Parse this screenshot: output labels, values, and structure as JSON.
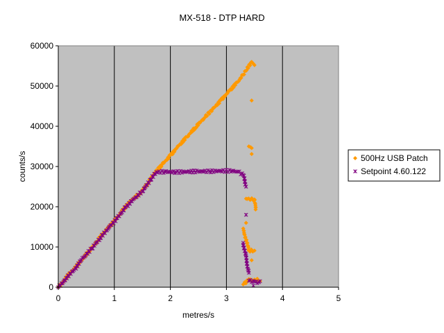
{
  "chart_data": {
    "type": "scatter",
    "title": "MX-518 - DTP HARD",
    "xlabel": "metres/s",
    "ylabel": "counts/s",
    "xlim": [
      0,
      5
    ],
    "ylim": [
      0,
      60000
    ],
    "xticks": [
      "0",
      "1",
      "2",
      "3",
      "4",
      "5"
    ],
    "yticks": [
      "0",
      "10000",
      "20000",
      "30000",
      "40000",
      "50000",
      "60000"
    ],
    "vertical_gridlines": true,
    "horizontal_gridlines": false,
    "plot_background": "#C0C0C0",
    "legend_position": "right",
    "series": [
      {
        "name": "500Hz USB Patch",
        "color": "#FF9900",
        "marker": "diamond",
        "points": [
          [
            0.0,
            0
          ],
          [
            0.28,
            4600
          ],
          [
            0.4,
            6500
          ],
          [
            0.55,
            8900
          ],
          [
            0.7,
            11500
          ],
          [
            0.85,
            14200
          ],
          [
            1.0,
            16500
          ],
          [
            1.15,
            19200
          ],
          [
            1.3,
            21600
          ],
          [
            1.45,
            23200
          ],
          [
            1.6,
            25800
          ],
          [
            1.72,
            28400
          ],
          [
            1.85,
            30500
          ],
          [
            2.0,
            32800
          ],
          [
            2.15,
            35200
          ],
          [
            2.3,
            37400
          ],
          [
            2.45,
            39700
          ],
          [
            2.6,
            42000
          ],
          [
            2.75,
            44200
          ],
          [
            2.9,
            46500
          ],
          [
            3.05,
            48800
          ],
          [
            3.2,
            51000
          ],
          [
            3.3,
            52800
          ],
          [
            3.35,
            53800
          ],
          [
            3.45,
            56000
          ],
          [
            3.5,
            55200
          ],
          [
            3.45,
            46400
          ],
          [
            3.4,
            35000
          ],
          [
            3.45,
            34600
          ],
          [
            3.45,
            33100
          ],
          [
            3.35,
            22000
          ],
          [
            3.5,
            21800
          ],
          [
            3.52,
            19300
          ],
          [
            3.35,
            16000
          ],
          [
            3.3,
            14600
          ],
          [
            3.4,
            9100
          ],
          [
            3.5,
            9100
          ],
          [
            3.45,
            6700
          ],
          [
            3.3,
            700
          ],
          [
            3.4,
            2000
          ],
          [
            3.45,
            1600
          ],
          [
            3.5,
            1900
          ],
          [
            3.55,
            2100
          ],
          [
            3.6,
            1500
          ]
        ]
      },
      {
        "name": "Setpoint 4.60.122",
        "color": "#800080",
        "marker": "asterisk",
        "points": [
          [
            0.0,
            0
          ],
          [
            0.28,
            4300
          ],
          [
            0.45,
            7400
          ],
          [
            0.6,
            9600
          ],
          [
            0.75,
            12200
          ],
          [
            0.9,
            14800
          ],
          [
            1.05,
            17200
          ],
          [
            1.2,
            19900
          ],
          [
            1.35,
            22000
          ],
          [
            1.5,
            23800
          ],
          [
            1.65,
            26700
          ],
          [
            1.75,
            28600
          ],
          [
            1.9,
            28700
          ],
          [
            2.1,
            28600
          ],
          [
            2.3,
            28700
          ],
          [
            2.5,
            28800
          ],
          [
            2.7,
            28800
          ],
          [
            2.9,
            28900
          ],
          [
            3.1,
            28900
          ],
          [
            3.2,
            28700
          ],
          [
            3.3,
            27900
          ],
          [
            3.35,
            25000
          ],
          [
            3.35,
            18000
          ],
          [
            3.3,
            11000
          ],
          [
            3.4,
            3600
          ],
          [
            3.4,
            1600
          ],
          [
            3.5,
            1400
          ],
          [
            3.55,
            1000
          ],
          [
            3.6,
            1500
          ],
          [
            3.48,
            400
          ]
        ]
      }
    ]
  }
}
